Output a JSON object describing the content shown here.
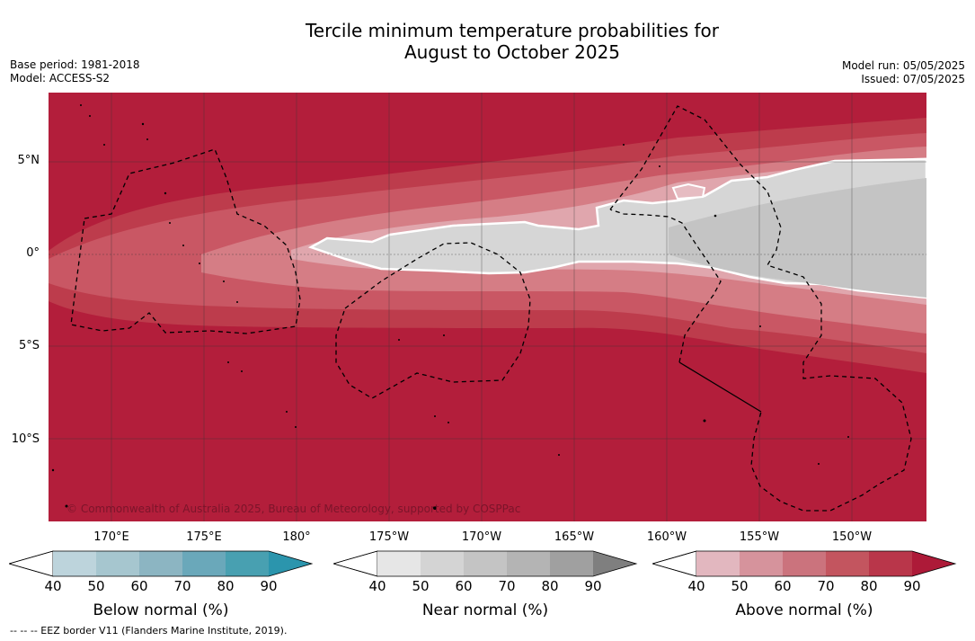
{
  "header": {
    "title_line1": "Tercile minimum temperature probabilities for",
    "title_line2": "August to October 2025",
    "base_period": "Base period: 1981-2018",
    "model": "Model: ACCESS-S2",
    "model_run": "Model run: 05/05/2025",
    "issued": "Issued: 07/05/2025"
  },
  "map": {
    "copyright": "© Commonwealth of Australia 2025, Bureau of Meteorology, supported by COSPPac",
    "lat_labels": [
      "5°N",
      "0°",
      "5°S",
      "10°S"
    ],
    "lon_labels": [
      "170°E",
      "175°E",
      "180°",
      "175°W",
      "170°W",
      "165°W",
      "160°W",
      "155°W",
      "150°W"
    ]
  },
  "colorbars": [
    {
      "label": "Below normal (%)",
      "ticks": [
        "40",
        "50",
        "60",
        "70",
        "80",
        "90"
      ],
      "colors": [
        "#bdd4dc",
        "#a6c6cf",
        "#8cb5c2",
        "#6aa8ba",
        "#48a0b1",
        "#2b95ad"
      ]
    },
    {
      "label": "Near normal (%)",
      "ticks": [
        "40",
        "50",
        "60",
        "70",
        "80",
        "90"
      ],
      "colors": [
        "#e6e6e6",
        "#d4d4d4",
        "#c4c4c4",
        "#b4b4b4",
        "#a0a0a0",
        "#7f7f7f"
      ]
    },
    {
      "label": "Above normal (%)",
      "ticks": [
        "40",
        "50",
        "60",
        "70",
        "80",
        "90"
      ],
      "colors": [
        "#e2b7bf",
        "#d6939c",
        "#cb737d",
        "#c3555f",
        "#b9364a",
        "#ad1a38"
      ]
    }
  ],
  "footnote": "--  --  -- EEZ border V11 (Flanders Marine Institute, 2019)."
}
